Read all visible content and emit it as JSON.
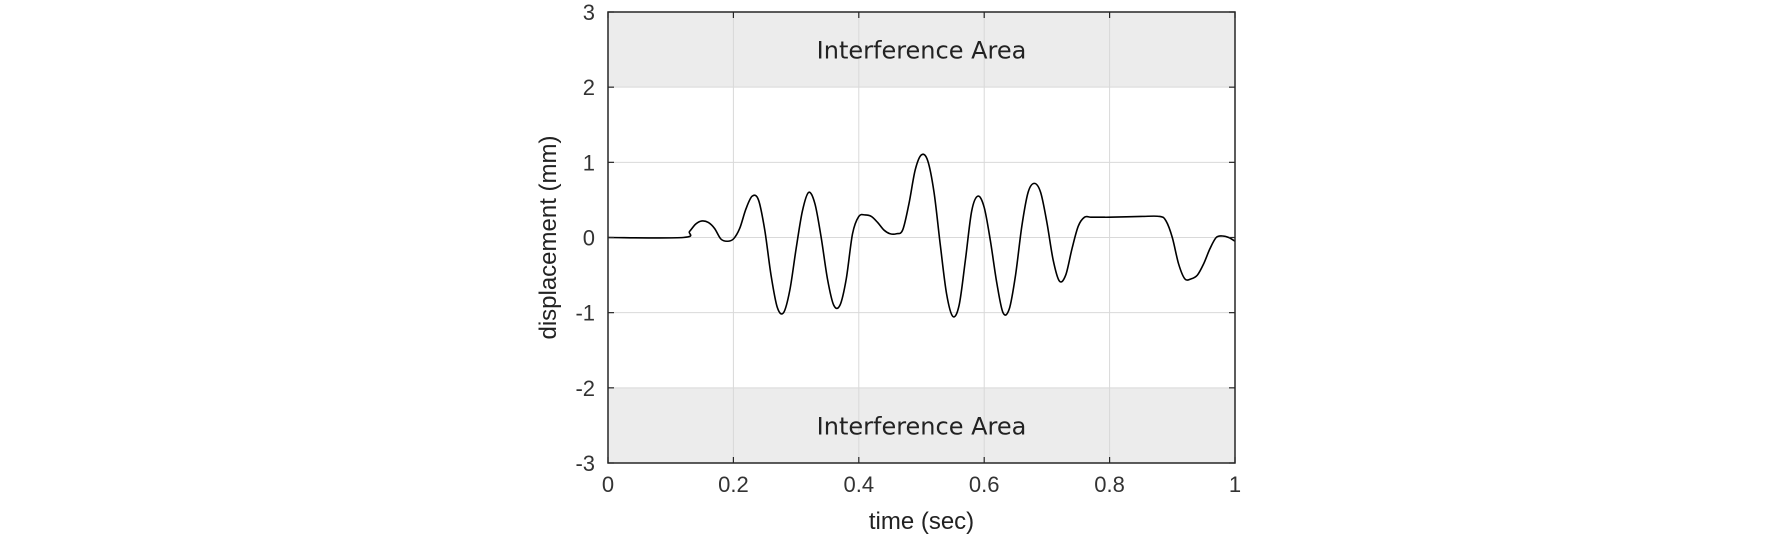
{
  "chart_data": {
    "type": "line",
    "title": "",
    "xlabel": "time (sec)",
    "ylabel": "displacement (mm)",
    "xlim": [
      0,
      1
    ],
    "ylim": [
      -3,
      3
    ],
    "xticks": [
      0,
      0.2,
      0.4,
      0.6,
      0.8,
      1
    ],
    "xtick_labels": [
      "0",
      "0.2",
      "0.4",
      "0.6",
      "0.8",
      "1"
    ],
    "yticks": [
      -3,
      -2,
      -1,
      0,
      1,
      2,
      3
    ],
    "ytick_labels": [
      "-3",
      "-2",
      "-1",
      "0",
      "1",
      "2",
      "3"
    ],
    "grid": true,
    "legend": "none",
    "regions": [
      {
        "label": "Interference Area",
        "y_from": 2,
        "y_to": 3,
        "color": "#ececec"
      },
      {
        "label": "Interference Area",
        "y_from": -3,
        "y_to": -2,
        "color": "#ececec"
      }
    ],
    "series": [
      {
        "color": "#000000",
        "x": [
          0,
          0.12,
          0.13,
          0.14,
          0.15,
          0.16,
          0.17,
          0.18,
          0.19,
          0.2,
          0.21,
          0.22,
          0.23,
          0.24,
          0.25,
          0.26,
          0.27,
          0.28,
          0.29,
          0.3,
          0.31,
          0.32,
          0.33,
          0.34,
          0.35,
          0.36,
          0.37,
          0.38,
          0.39,
          0.4,
          0.41,
          0.42,
          0.43,
          0.44,
          0.45,
          0.46,
          0.47,
          0.48,
          0.49,
          0.5,
          0.51,
          0.52,
          0.53,
          0.54,
          0.55,
          0.56,
          0.57,
          0.58,
          0.59,
          0.6,
          0.61,
          0.62,
          0.63,
          0.64,
          0.65,
          0.66,
          0.67,
          0.68,
          0.69,
          0.7,
          0.71,
          0.72,
          0.73,
          0.74,
          0.75,
          0.76,
          0.77,
          0.78,
          0.79,
          0.8,
          0.85,
          0.88,
          0.89,
          0.9,
          0.91,
          0.92,
          0.93,
          0.94,
          0.95,
          0.96,
          0.97,
          0.98,
          0.99,
          1.0
        ],
        "y": [
          0,
          0,
          0.08,
          0.18,
          0.22,
          0.2,
          0.12,
          -0.02,
          -0.05,
          -0.02,
          0.12,
          0.38,
          0.55,
          0.5,
          0.1,
          -0.5,
          -0.93,
          -1.0,
          -0.7,
          -0.15,
          0.35,
          0.6,
          0.45,
          0.0,
          -0.55,
          -0.9,
          -0.9,
          -0.55,
          0.05,
          0.28,
          0.3,
          0.28,
          0.2,
          0.1,
          0.05,
          0.05,
          0.1,
          0.45,
          0.9,
          1.1,
          1.02,
          0.6,
          -0.1,
          -0.75,
          -1.05,
          -0.9,
          -0.3,
          0.35,
          0.55,
          0.4,
          -0.05,
          -0.6,
          -1.0,
          -0.95,
          -0.5,
          0.15,
          0.6,
          0.72,
          0.6,
          0.2,
          -0.3,
          -0.58,
          -0.5,
          -0.15,
          0.15,
          0.27,
          0.27,
          0.27,
          0.27,
          0.27,
          0.28,
          0.28,
          0.22,
          0.0,
          -0.35,
          -0.55,
          -0.55,
          -0.5,
          -0.35,
          -0.15,
          0.0,
          0.02,
          0.0,
          -0.05
        ]
      }
    ]
  }
}
